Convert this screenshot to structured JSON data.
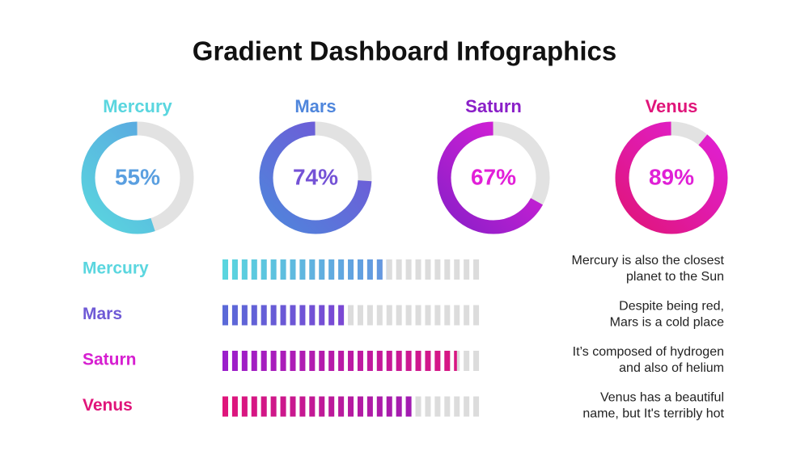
{
  "title": "Gradient Dashboard Infographics",
  "chart_data": [
    {
      "type": "donut",
      "title": "Mercury",
      "values": [
        55
      ],
      "value_labels": [
        "55%"
      ],
      "colors": [
        "#5ad6df",
        "#5a9fe0"
      ]
    },
    {
      "type": "donut",
      "title": "Mars",
      "values": [
        74
      ],
      "value_labels": [
        "74%"
      ],
      "colors": [
        "#4f86dc",
        "#7452d6"
      ]
    },
    {
      "type": "donut",
      "title": "Saturn",
      "values": [
        67
      ],
      "value_labels": [
        "67%"
      ],
      "colors": [
        "#8a1fc8",
        "#e21fd8"
      ]
    },
    {
      "type": "donut",
      "title": "Venus",
      "values": [
        89
      ],
      "value_labels": [
        "89%"
      ],
      "colors": [
        "#e0157a",
        "#e020d6"
      ]
    },
    {
      "type": "bar",
      "orientation": "horizontal",
      "categories": [
        "Mercury",
        "Mars",
        "Saturn",
        "Venus"
      ],
      "values": [
        63,
        48,
        90,
        74
      ],
      "xlim": [
        0,
        100
      ],
      "colors": [
        [
          "#5ad6df",
          "#6a6fe0"
        ],
        [
          "#5a6ad8",
          "#a020d0"
        ],
        [
          "#9a1fcc",
          "#e0157a"
        ],
        [
          "#e0157a",
          "#8a1fc8"
        ]
      ],
      "label_colors": [
        "#5ad6df",
        "#6f5ad6",
        "#d61fd0",
        "#e0157a"
      ],
      "annotations": [
        [
          "Mercury is also the closest",
          "planet to the Sun"
        ],
        [
          "Despite being red,",
          "Mars is a cold place"
        ],
        [
          "It’s composed of hydrogen",
          "and also of helium"
        ],
        [
          "Venus has a beautiful",
          "name, but It's terribly hot"
        ]
      ]
    }
  ]
}
